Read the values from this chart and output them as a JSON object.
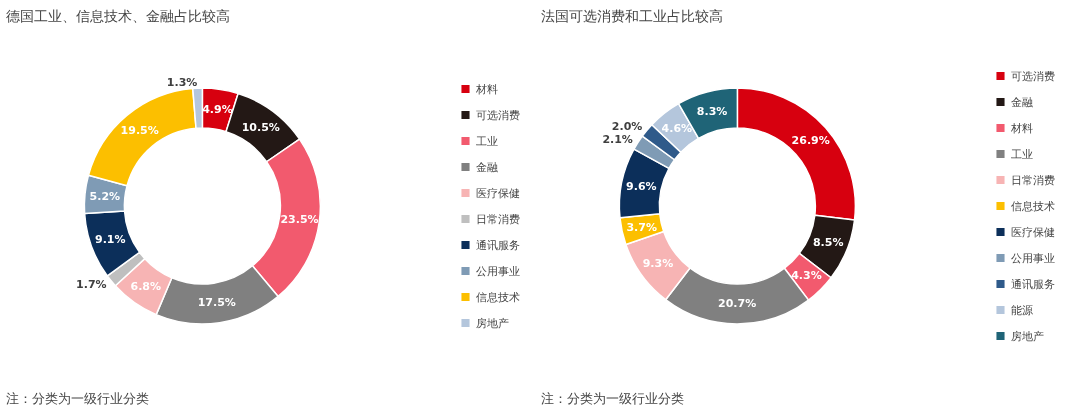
{
  "chart_data": [
    {
      "type": "donut",
      "title": "德国工业、信息技术、金融占比较高",
      "categories": [
        "材料",
        "可选消费",
        "工业",
        "金融",
        "医疗保健",
        "日常消费",
        "通讯服务",
        "公用事业",
        "信息技术",
        "房地产"
      ],
      "values": [
        4.9,
        10.5,
        23.5,
        17.5,
        6.8,
        1.7,
        9.1,
        5.2,
        19.5,
        1.3
      ],
      "colors": [
        "#d7000f",
        "#231815",
        "#f25a6e",
        "#808080",
        "#f7b4b4",
        "#bfbfbf",
        "#0c2f5a",
        "#7f9bb5",
        "#fcbf00",
        "#b4c6dc"
      ],
      "value_labels": [
        "4.9%",
        "10.5%",
        "23.5%",
        "17.5%",
        "6.8%",
        "1.7%",
        "9.1%",
        "5.2%",
        "19.5%",
        "1.3%"
      ],
      "legend": "right",
      "annotations": [
        "注：分类为一级行业分类"
      ]
    },
    {
      "type": "donut",
      "title": "法国可选消费和工业占比较高",
      "categories": [
        "可选消费",
        "金融",
        "材料",
        "工业",
        "日常消费",
        "信息技术",
        "医疗保健",
        "公用事业",
        "通讯服务",
        "能源",
        "房地产"
      ],
      "values": [
        26.9,
        8.5,
        4.3,
        20.7,
        9.3,
        3.7,
        9.6,
        2.1,
        2.0,
        4.6,
        8.3
      ],
      "colors": [
        "#d7000f",
        "#231815",
        "#f25a6e",
        "#808080",
        "#f7b4b4",
        "#fcbf00",
        "#0c2f5a",
        "#7f9bb5",
        "#2f5a8a",
        "#b4c6dc",
        "#1f6477"
      ],
      "value_labels": [
        "26.9%",
        "8.5%",
        "4.3%",
        "20.7%",
        "9.3%",
        "3.7%",
        "9.6%",
        "2.1%",
        "2.0%",
        "4.6%",
        "8.3%"
      ],
      "legend": "right",
      "annotations": [
        "注：分类为一级行业分类"
      ]
    }
  ]
}
